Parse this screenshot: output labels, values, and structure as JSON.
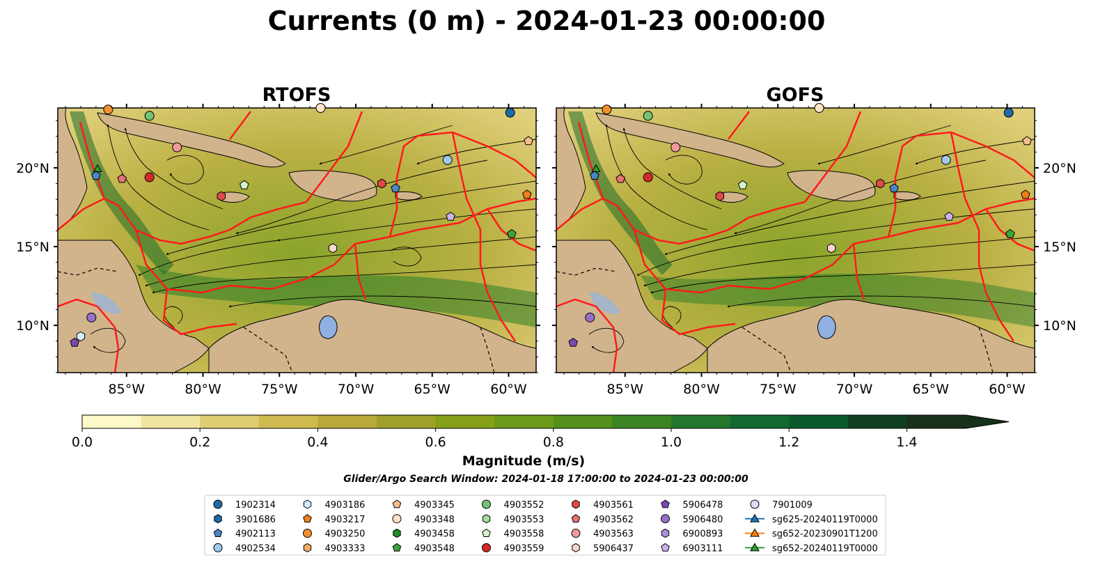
{
  "title": "Currents (0 m) - 2024-01-23 00:00:00",
  "panels": [
    {
      "name": "RTOFS"
    },
    {
      "name": "GOFS"
    }
  ],
  "map_extent": {
    "lon_min": -89.5,
    "lon_max": -58.2,
    "lat_min": 7.0,
    "lat_max": 23.8
  },
  "lon_ticks": [
    {
      "value": -85,
      "label": "85°W"
    },
    {
      "value": -80,
      "label": "80°W"
    },
    {
      "value": -75,
      "label": "75°W"
    },
    {
      "value": -70,
      "label": "70°W"
    },
    {
      "value": -65,
      "label": "65°W"
    },
    {
      "value": -60,
      "label": "60°W"
    }
  ],
  "lat_ticks": [
    {
      "value": 10,
      "label": "10°N"
    },
    {
      "value": 15,
      "label": "15°N"
    },
    {
      "value": 20,
      "label": "20°N"
    }
  ],
  "colors": {
    "land": "#d2b48c",
    "eez_lines": "#ff1a1a",
    "lake": "#8fb0e0",
    "rivers": "#a0b4cc"
  },
  "colorbar": {
    "label": "Magnitude (m/s)",
    "min": 0.0,
    "max": 1.5,
    "extend": "max",
    "ticks": [
      {
        "value": 0.0,
        "label": "0.0"
      },
      {
        "value": 0.2,
        "label": "0.2"
      },
      {
        "value": 0.4,
        "label": "0.4"
      },
      {
        "value": 0.6,
        "label": "0.6"
      },
      {
        "value": 0.8,
        "label": "0.8"
      },
      {
        "value": 1.0,
        "label": "1.0"
      },
      {
        "value": 1.2,
        "label": "1.2"
      },
      {
        "value": 1.4,
        "label": "1.4"
      }
    ],
    "levels": [
      "#fdf8c8",
      "#f0e4a0",
      "#dfcd72",
      "#cfba50",
      "#b9a93a",
      "#a0a02a",
      "#86a01a",
      "#6c9a1a",
      "#54901c",
      "#3c8424",
      "#23762c",
      "#126a30",
      "#0c5a2c",
      "#103f22",
      "#17301a"
    ]
  },
  "search_window": "Glider/Argo Search Window: 2024-01-18 17:00:00 to 2024-01-23 00:00:00",
  "legend": [
    {
      "label": "1902314",
      "marker": "circle",
      "color": "#1f6aa5"
    },
    {
      "label": "3901686",
      "marker": "hexagon",
      "color": "#1f6aa5"
    },
    {
      "label": "4902113",
      "marker": "pentagon",
      "color": "#4a86c5"
    },
    {
      "label": "4902534",
      "marker": "circle",
      "color": "#9ec9ec"
    },
    {
      "label": "4903186",
      "marker": "hexagon",
      "color": "#d6ecfa"
    },
    {
      "label": "4903217",
      "marker": "pentagon",
      "color": "#f07f1a"
    },
    {
      "label": "4903250",
      "marker": "circle",
      "color": "#f39030"
    },
    {
      "label": "4903333",
      "marker": "hexagon",
      "color": "#f5ac6a"
    },
    {
      "label": "4903345",
      "marker": "pentagon",
      "color": "#f6c08c"
    },
    {
      "label": "4903348",
      "marker": "circle",
      "color": "#fde2c4"
    },
    {
      "label": "4903458",
      "marker": "hexagon",
      "color": "#1e8c2a"
    },
    {
      "label": "4903548",
      "marker": "pentagon",
      "color": "#3aa63a"
    },
    {
      "label": "4903552",
      "marker": "circle",
      "color": "#74c474"
    },
    {
      "label": "4903553",
      "marker": "hexagon",
      "color": "#a4dc98"
    },
    {
      "label": "4903558",
      "marker": "pentagon",
      "color": "#d6f4cc"
    },
    {
      "label": "4903559",
      "marker": "circle",
      "color": "#d42a2a"
    },
    {
      "label": "4903561",
      "marker": "hexagon",
      "color": "#e04a4a"
    },
    {
      "label": "4903562",
      "marker": "pentagon",
      "color": "#ea7272"
    },
    {
      "label": "4903563",
      "marker": "circle",
      "color": "#f29a9a"
    },
    {
      "label": "5906437",
      "marker": "hexagon",
      "color": "#fcd4d0"
    },
    {
      "label": "5906478",
      "marker": "pentagon",
      "color": "#7a4ab0"
    },
    {
      "label": "5906480",
      "marker": "circle",
      "color": "#9470c8"
    },
    {
      "label": "6900893",
      "marker": "hexagon",
      "color": "#ac90d8"
    },
    {
      "label": "6903111",
      "marker": "pentagon",
      "color": "#cab4ea"
    },
    {
      "label": "7901009",
      "marker": "circle",
      "color": "#e6d6f8"
    },
    {
      "label": "sg625-20240119T0000",
      "marker": "triangle-line",
      "color": "#1f77b4"
    },
    {
      "label": "sg652-20230901T1200",
      "marker": "triangle-line",
      "color": "#ff7f0e"
    },
    {
      "label": "sg652-20240119T0000",
      "marker": "triangle-line",
      "color": "#2ca02c"
    }
  ],
  "map_markers": [
    {
      "panel": 0,
      "lon": -86.2,
      "lat": 23.7,
      "marker": "circle",
      "color": "#f39030"
    },
    {
      "panel": 0,
      "lon": -83.5,
      "lat": 23.3,
      "marker": "circle",
      "color": "#74c474"
    },
    {
      "panel": 0,
      "lon": -72.3,
      "lat": 23.8,
      "marker": "circle",
      "color": "#fde2c4"
    },
    {
      "panel": 0,
      "lon": -59.9,
      "lat": 23.5,
      "marker": "circle",
      "color": "#1f6aa5"
    },
    {
      "panel": 0,
      "lon": -58.7,
      "lat": 21.7,
      "marker": "pentagon",
      "color": "#f6c08c"
    },
    {
      "panel": 0,
      "lon": -81.7,
      "lat": 21.3,
      "marker": "circle",
      "color": "#f29a9a"
    },
    {
      "panel": 0,
      "lon": -64.0,
      "lat": 20.5,
      "marker": "circle",
      "color": "#9ec9ec"
    },
    {
      "panel": 0,
      "lon": -86.9,
      "lat": 19.9,
      "marker": "triangle",
      "color": "#2ca02c"
    },
    {
      "panel": 0,
      "lon": -87.0,
      "lat": 19.5,
      "marker": "pentagon",
      "color": "#4a86c5"
    },
    {
      "panel": 0,
      "lon": -85.3,
      "lat": 19.3,
      "marker": "pentagon",
      "color": "#ea7272"
    },
    {
      "panel": 0,
      "lon": -83.5,
      "lat": 19.4,
      "marker": "circle",
      "color": "#d42a2a"
    },
    {
      "panel": 0,
      "lon": -77.3,
      "lat": 18.9,
      "marker": "pentagon",
      "color": "#d6f4cc"
    },
    {
      "panel": 0,
      "lon": -68.3,
      "lat": 19.0,
      "marker": "hexagon",
      "color": "#e04a4a"
    },
    {
      "panel": 0,
      "lon": -67.4,
      "lat": 18.7,
      "marker": "pentagon",
      "color": "#4a86c5"
    },
    {
      "panel": 0,
      "lon": -78.8,
      "lat": 18.2,
      "marker": "hexagon",
      "color": "#e04a4a"
    },
    {
      "panel": 0,
      "lon": -58.8,
      "lat": 18.3,
      "marker": "pentagon",
      "color": "#f07f1a"
    },
    {
      "panel": 0,
      "lon": -63.8,
      "lat": 16.9,
      "marker": "pentagon",
      "color": "#cab4ea"
    },
    {
      "panel": 0,
      "lon": -59.8,
      "lat": 15.8,
      "marker": "pentagon",
      "color": "#3aa63a"
    },
    {
      "panel": 0,
      "lon": -71.5,
      "lat": 14.9,
      "marker": "hexagon",
      "color": "#fcd4d0"
    },
    {
      "panel": 0,
      "lon": -87.3,
      "lat": 10.5,
      "marker": "circle",
      "color": "#9470c8"
    },
    {
      "panel": 0,
      "lon": -88.0,
      "lat": 9.3,
      "marker": "hexagon",
      "color": "#d6ecfa"
    },
    {
      "panel": 0,
      "lon": -88.4,
      "lat": 8.9,
      "marker": "pentagon",
      "color": "#7a4ab0"
    },
    {
      "panel": 1,
      "lon": -86.2,
      "lat": 23.7,
      "marker": "circle",
      "color": "#f39030"
    },
    {
      "panel": 1,
      "lon": -83.5,
      "lat": 23.3,
      "marker": "circle",
      "color": "#74c474"
    },
    {
      "panel": 1,
      "lon": -72.3,
      "lat": 23.8,
      "marker": "circle",
      "color": "#fde2c4"
    },
    {
      "panel": 1,
      "lon": -59.9,
      "lat": 23.5,
      "marker": "circle",
      "color": "#1f6aa5"
    },
    {
      "panel": 1,
      "lon": -58.7,
      "lat": 21.7,
      "marker": "pentagon",
      "color": "#f6c08c"
    },
    {
      "panel": 1,
      "lon": -81.7,
      "lat": 21.3,
      "marker": "circle",
      "color": "#f29a9a"
    },
    {
      "panel": 1,
      "lon": -64.0,
      "lat": 20.5,
      "marker": "circle",
      "color": "#9ec9ec"
    },
    {
      "panel": 1,
      "lon": -86.9,
      "lat": 19.9,
      "marker": "triangle",
      "color": "#2ca02c"
    },
    {
      "panel": 1,
      "lon": -87.0,
      "lat": 19.5,
      "marker": "pentagon",
      "color": "#4a86c5"
    },
    {
      "panel": 1,
      "lon": -85.3,
      "lat": 19.3,
      "marker": "pentagon",
      "color": "#ea7272"
    },
    {
      "panel": 1,
      "lon": -83.5,
      "lat": 19.4,
      "marker": "circle",
      "color": "#d42a2a"
    },
    {
      "panel": 1,
      "lon": -77.3,
      "lat": 18.9,
      "marker": "pentagon",
      "color": "#d6f4cc"
    },
    {
      "panel": 1,
      "lon": -68.3,
      "lat": 19.0,
      "marker": "hexagon",
      "color": "#e04a4a"
    },
    {
      "panel": 1,
      "lon": -67.4,
      "lat": 18.7,
      "marker": "pentagon",
      "color": "#4a86c5"
    },
    {
      "panel": 1,
      "lon": -78.8,
      "lat": 18.2,
      "marker": "hexagon",
      "color": "#e04a4a"
    },
    {
      "panel": 1,
      "lon": -58.8,
      "lat": 18.3,
      "marker": "pentagon",
      "color": "#f07f1a"
    },
    {
      "panel": 1,
      "lon": -63.8,
      "lat": 16.9,
      "marker": "pentagon",
      "color": "#cab4ea"
    },
    {
      "panel": 1,
      "lon": -59.8,
      "lat": 15.8,
      "marker": "pentagon",
      "color": "#3aa63a"
    },
    {
      "panel": 1,
      "lon": -71.5,
      "lat": 14.9,
      "marker": "hexagon",
      "color": "#fcd4d0"
    },
    {
      "panel": 1,
      "lon": -87.3,
      "lat": 10.5,
      "marker": "circle",
      "color": "#9470c8"
    },
    {
      "panel": 1,
      "lon": -88.4,
      "lat": 8.9,
      "marker": "pentagon",
      "color": "#7a4ab0"
    }
  ]
}
